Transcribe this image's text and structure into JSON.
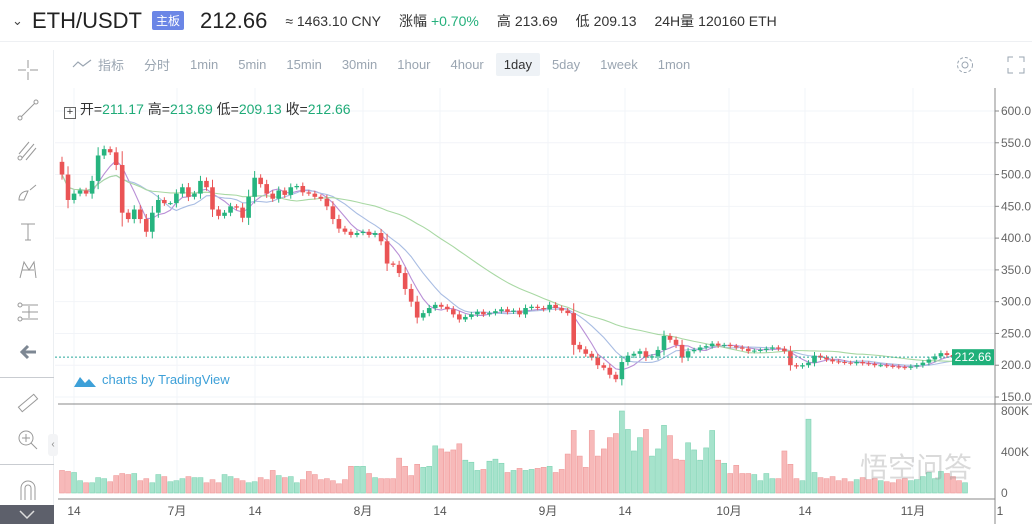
{
  "header": {
    "symbol": "ETH/USDT",
    "badge": "主板",
    "price": "212.66",
    "cny": "≈ 1463.10 CNY",
    "change_label": "涨幅",
    "change": "+0.70%",
    "high_label": "高",
    "high": "213.69",
    "low_label": "低",
    "low": "209.13",
    "vol_label": "24H量",
    "volume": "120160 ETH"
  },
  "toolbar": {
    "indicator": "指标",
    "intervals": [
      "分时",
      "1min",
      "5min",
      "15min",
      "30min",
      "1hour",
      "4hour",
      "1day",
      "5day",
      "1week",
      "1mon"
    ],
    "active": "1day"
  },
  "legend": {
    "open_label": "开=",
    "open": "211.17",
    "high_label": "高=",
    "high": "213.69",
    "low_label": "低=",
    "low": "209.13",
    "close_label": "收=",
    "close": "212.66"
  },
  "attribution": "charts by TradingView",
  "watermark": "悟空问答",
  "colors": {
    "up": "#26b47f",
    "down": "#ea5455",
    "up_vol": "#a6e3cc",
    "down_vol": "#f7b9b9",
    "ma5": "#b98fd6",
    "ma10": "#a9bde3",
    "ma30": "#a8d8a3",
    "accent": "#6b86e6"
  },
  "chart_data": {
    "type": "candlestick",
    "interval": "1day",
    "price_axis": {
      "ticks": [
        "600.0",
        "550.0",
        "500.0",
        "450.0",
        "400.0",
        "350.0",
        "300.0",
        "250.0",
        "200.0",
        "150.0"
      ],
      "range": [
        150,
        600
      ]
    },
    "volume_axis": {
      "ticks": [
        "800K",
        "400K",
        "0"
      ],
      "range": [
        0,
        800
      ]
    },
    "x_ticks": [
      "14",
      "7月",
      "14",
      "8月",
      "14",
      "9月",
      "14",
      "10月",
      "14",
      "11月",
      "1"
    ],
    "last_price_label": "212.66",
    "moving_averages": [
      5,
      10,
      30
    ],
    "first_open": 520,
    "closes": [
      500,
      460,
      470,
      475,
      470,
      490,
      530,
      540,
      535,
      515,
      440,
      430,
      445,
      430,
      410,
      440,
      460,
      455,
      455,
      470,
      480,
      465,
      470,
      490,
      480,
      445,
      435,
      440,
      450,
      448,
      432,
      465,
      495,
      485,
      470,
      462,
      475,
      468,
      480,
      482,
      472,
      470,
      465,
      462,
      450,
      430,
      415,
      410,
      405,
      408,
      410,
      405,
      408,
      395,
      360,
      358,
      345,
      320,
      300,
      275,
      282,
      290,
      295,
      292,
      288,
      280,
      272,
      276,
      280,
      284,
      280,
      282,
      285,
      288,
      284,
      286,
      280,
      290,
      292,
      290,
      288,
      295,
      290,
      286,
      282,
      232,
      225,
      218,
      212,
      200,
      196,
      185,
      178,
      205,
      215,
      218,
      222,
      212,
      214,
      224,
      246,
      240,
      232,
      212,
      222,
      224,
      228,
      230,
      234,
      231,
      232,
      230,
      228,
      226,
      222,
      223,
      224,
      226,
      228,
      226,
      222,
      200,
      198,
      200,
      204,
      215,
      212,
      209,
      206,
      205,
      204,
      203,
      205,
      203,
      202,
      200,
      200,
      199,
      198,
      197,
      196,
      198,
      200,
      204,
      209,
      214,
      219,
      216,
      213,
      211.17,
      212.66
    ],
    "volumes_k": [
      220,
      210,
      200,
      120,
      100,
      100,
      150,
      140,
      110,
      170,
      190,
      180,
      190,
      120,
      140,
      100,
      180,
      160,
      110,
      120,
      140,
      160,
      150,
      150,
      100,
      130,
      100,
      180,
      160,
      140,
      120,
      100,
      110,
      150,
      130,
      220,
      170,
      150,
      160,
      100,
      130,
      210,
      180,
      130,
      140,
      120,
      90,
      130,
      260,
      260,
      260,
      190,
      150,
      140,
      140,
      140,
      340,
      260,
      170,
      280,
      250,
      260,
      460,
      430,
      400,
      420,
      480,
      320,
      300,
      220,
      230,
      310,
      330,
      290,
      200,
      220,
      240,
      220,
      230,
      240,
      250,
      260,
      200,
      230,
      380,
      610,
      360,
      250,
      610,
      360,
      430,
      540,
      580,
      800,
      620,
      410,
      540,
      620,
      360,
      430,
      660,
      560,
      330,
      320,
      490,
      420,
      320,
      440,
      610,
      320,
      290,
      190,
      270,
      190,
      190,
      180,
      120,
      190,
      140,
      140,
      410,
      280,
      140,
      120,
      720,
      200,
      150,
      140,
      160,
      120,
      140,
      110,
      130,
      150,
      130,
      140,
      120,
      110,
      100,
      130,
      140,
      120,
      130,
      160,
      200,
      140,
      210,
      190,
      160,
      120,
      100
    ]
  }
}
